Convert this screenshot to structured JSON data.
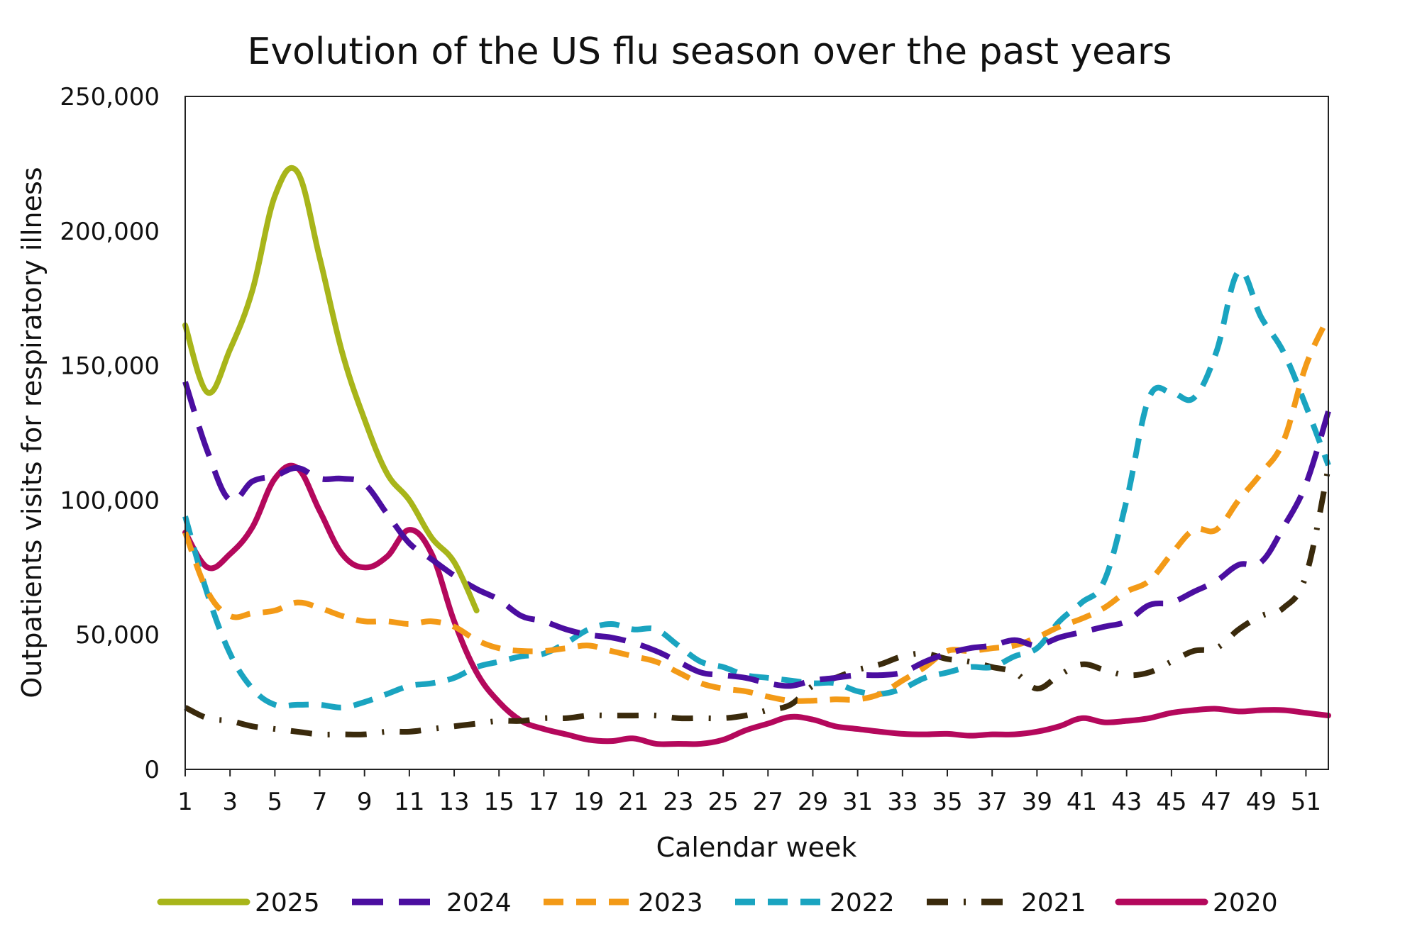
{
  "chart_data": {
    "type": "line",
    "title": "Evolution of the US flu season over the past years",
    "xlabel": "Calendar week",
    "ylabel": "Outpatients visits for respiratory illness",
    "xlim": [
      1,
      52
    ],
    "ylim": [
      0,
      250000
    ],
    "x_ticks": [
      1,
      3,
      5,
      7,
      9,
      11,
      13,
      15,
      17,
      19,
      21,
      23,
      25,
      27,
      29,
      31,
      33,
      35,
      37,
      39,
      41,
      43,
      45,
      47,
      49,
      51
    ],
    "y_ticks": [
      0,
      50000,
      100000,
      150000,
      200000,
      250000
    ],
    "y_tick_labels": [
      "0",
      "50,000",
      "100,000",
      "150,000",
      "200,000",
      "250,000"
    ],
    "grid": false,
    "legend_position": "bottom",
    "series": [
      {
        "name": "2025",
        "color": "#a8b51a",
        "dash": "solid",
        "x": [
          1,
          2,
          3,
          4,
          5,
          6,
          7,
          8,
          9,
          10,
          11,
          12,
          13,
          14
        ],
        "values": [
          165000,
          140000,
          156000,
          178000,
          213000,
          222000,
          190000,
          155000,
          130000,
          110000,
          100000,
          86000,
          77000,
          59000
        ]
      },
      {
        "name": "2024",
        "color": "#4b0ea0",
        "dash": "long-dash",
        "x": [
          1,
          2,
          3,
          4,
          5,
          6,
          7,
          8,
          9,
          10,
          11,
          12,
          13,
          14,
          15,
          16,
          17,
          18,
          19,
          20,
          21,
          22,
          23,
          24,
          25,
          26,
          27,
          28,
          29,
          30,
          31,
          32,
          33,
          34,
          35,
          36,
          37,
          38,
          39,
          40,
          41,
          42,
          43,
          44,
          45,
          46,
          47,
          48,
          49,
          50,
          51,
          52
        ],
        "values": [
          144000,
          118000,
          100000,
          107000,
          109000,
          112000,
          108000,
          108000,
          106000,
          95000,
          84000,
          78000,
          72000,
          67000,
          63000,
          57000,
          55000,
          52000,
          50000,
          49000,
          47000,
          44000,
          40000,
          36000,
          35000,
          34000,
          32000,
          31000,
          33000,
          34000,
          35000,
          35000,
          36000,
          40000,
          43000,
          45000,
          46000,
          48000,
          46000,
          49000,
          51000,
          53000,
          55000,
          61000,
          62000,
          66000,
          70000,
          76000,
          77000,
          90000,
          106000,
          133000
        ]
      },
      {
        "name": "2023",
        "color": "#f39a17",
        "dash": "dash",
        "x": [
          1,
          2,
          3,
          4,
          5,
          6,
          7,
          8,
          9,
          10,
          11,
          12,
          13,
          14,
          15,
          16,
          17,
          18,
          19,
          20,
          21,
          22,
          23,
          24,
          25,
          26,
          27,
          28,
          29,
          30,
          31,
          32,
          33,
          34,
          35,
          36,
          37,
          38,
          39,
          40,
          41,
          42,
          43,
          44,
          45,
          46,
          47,
          48,
          49,
          50,
          51,
          52
        ],
        "values": [
          88000,
          66000,
          57000,
          58000,
          59000,
          62000,
          60000,
          57000,
          55000,
          55000,
          54000,
          55000,
          53000,
          48000,
          45000,
          44000,
          44000,
          45000,
          46000,
          44000,
          42000,
          40000,
          36000,
          32000,
          30000,
          29000,
          27000,
          25500,
          25500,
          26000,
          26000,
          28000,
          33000,
          38000,
          44000,
          44000,
          45000,
          46000,
          49000,
          53000,
          56000,
          60000,
          66000,
          70000,
          80000,
          89000,
          89000,
          100000,
          110000,
          122000,
          150000,
          168000
        ]
      },
      {
        "name": "2022",
        "color": "#1aa4c0",
        "dash": "dash",
        "x": [
          1,
          2,
          3,
          4,
          5,
          6,
          7,
          8,
          9,
          10,
          11,
          12,
          13,
          14,
          15,
          16,
          17,
          18,
          19,
          20,
          21,
          22,
          23,
          24,
          25,
          26,
          27,
          28,
          29,
          30,
          31,
          32,
          33,
          34,
          35,
          36,
          37,
          38,
          39,
          40,
          41,
          42,
          43,
          44,
          45,
          46,
          47,
          48,
          49,
          50,
          51,
          52
        ],
        "values": [
          94000,
          65000,
          43000,
          30000,
          24000,
          24000,
          24000,
          23000,
          25000,
          28000,
          31000,
          32000,
          34000,
          38000,
          40000,
          42000,
          43000,
          47000,
          52000,
          54000,
          52000,
          52000,
          46000,
          40000,
          38000,
          35000,
          34000,
          33000,
          32000,
          32000,
          29000,
          28000,
          30000,
          34000,
          36000,
          38000,
          38000,
          42000,
          45000,
          55000,
          62000,
          70000,
          100000,
          138000,
          140000,
          138000,
          155000,
          185000,
          168000,
          155000,
          135000,
          113000
        ]
      },
      {
        "name": "2021",
        "color": "#3a2a0c",
        "dash": "dash-dot",
        "x": [
          1,
          2,
          3,
          4,
          5,
          6,
          7,
          8,
          9,
          10,
          11,
          12,
          13,
          14,
          15,
          16,
          17,
          18,
          19,
          20,
          21,
          22,
          23,
          24,
          25,
          26,
          27,
          28,
          29,
          30,
          31,
          32,
          33,
          34,
          35,
          36,
          37,
          38,
          39,
          40,
          41,
          42,
          43,
          44,
          45,
          46,
          47,
          48,
          49,
          50,
          51,
          52
        ],
        "values": [
          23000,
          19000,
          18000,
          16000,
          15000,
          14000,
          13000,
          13000,
          13000,
          14000,
          14000,
          15000,
          16000,
          17000,
          18000,
          18000,
          19000,
          19000,
          20000,
          20000,
          20000,
          20000,
          19000,
          19000,
          19000,
          20000,
          22000,
          24000,
          31000,
          34000,
          37000,
          39000,
          42000,
          43000,
          41000,
          40000,
          38000,
          36000,
          30000,
          35000,
          39000,
          37000,
          35000,
          36000,
          40000,
          44000,
          45000,
          52000,
          57000,
          60000,
          72000,
          112000
        ]
      },
      {
        "name": "2020",
        "color": "#b4085c",
        "dash": "solid",
        "x": [
          1,
          2,
          3,
          4,
          5,
          6,
          7,
          8,
          9,
          10,
          11,
          12,
          13,
          14,
          15,
          16,
          17,
          18,
          19,
          20,
          21,
          22,
          23,
          24,
          25,
          26,
          27,
          28,
          29,
          30,
          31,
          32,
          33,
          34,
          35,
          36,
          37,
          38,
          39,
          40,
          41,
          42,
          43,
          44,
          45,
          46,
          47,
          48,
          49,
          50,
          51,
          52
        ],
        "values": [
          88000,
          75000,
          80000,
          90000,
          108000,
          112000,
          96000,
          80000,
          75000,
          79000,
          89000,
          80000,
          55000,
          36000,
          25000,
          18000,
          15000,
          13000,
          11000,
          10500,
          11500,
          9500,
          9500,
          9500,
          11000,
          14500,
          17000,
          19500,
          18500,
          16000,
          15000,
          14000,
          13200,
          13000,
          13200,
          12500,
          13000,
          13000,
          14000,
          16000,
          19000,
          17500,
          18000,
          19000,
          21000,
          22000,
          22500,
          21500,
          22000,
          22000,
          21000,
          20000
        ]
      }
    ]
  }
}
